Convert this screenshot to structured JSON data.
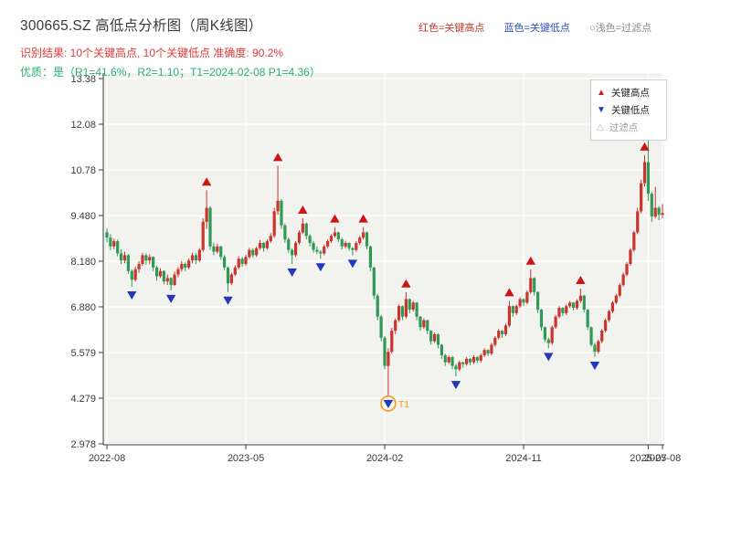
{
  "header": {
    "title": "300665.SZ 高低点分析图（周K线图）",
    "legend_inline": [
      {
        "label": "红色=关键高点",
        "color": "#c0392b"
      },
      {
        "label": "蓝色=关键低点",
        "color": "#2e4fbb"
      },
      {
        "label": "○浅色=过滤点",
        "color": "#8a8a8a"
      }
    ],
    "result_line": "识别结果: 10个关键高点, 10个关键低点  准确度: 90.2%",
    "quality_line": "优质：是（R1=41.6%，R2=1.10；T1=2024-02-08 P1=4.36）"
  },
  "chart_data": {
    "type": "candlestick",
    "title": "300665.SZ 高低点分析图（周K线图）",
    "xlabel": "",
    "ylabel": "",
    "ylim": [
      2.978,
      13.38
    ],
    "grid": true,
    "legend_position": "upper right",
    "y_ticks": [
      "13.38",
      "12.08",
      "10.78",
      "9.480",
      "8.180",
      "6.880",
      "5.579",
      "4.279",
      "2.978"
    ],
    "y_tick_values": [
      13.38,
      12.08,
      10.78,
      9.48,
      8.18,
      6.88,
      5.579,
      4.279,
      2.978
    ],
    "x_ticks": [
      {
        "label": "2022-08",
        "week": 0
      },
      {
        "label": "2023-05",
        "week": 39
      },
      {
        "label": "2024-02",
        "week": 78
      },
      {
        "label": "2024-11",
        "week": 117
      },
      {
        "label": "2025-07",
        "week": 152
      },
      {
        "label": "2025-08",
        "week": 156
      }
    ],
    "colors": {
      "up": "#c9352c",
      "down": "#2e9a56",
      "high_marker": "#cc1515",
      "low_marker": "#2438b8",
      "filtered": "#d8d8d8",
      "annotation": "#f39c12"
    },
    "legend": [
      {
        "marker": "up-triangle",
        "label": "关键高点"
      },
      {
        "marker": "down-triangle",
        "label": "关键低点"
      },
      {
        "marker": "open-triangle",
        "label": "过滤点"
      }
    ],
    "candles": [
      [
        9.0,
        9.12,
        8.72,
        8.85
      ],
      [
        8.85,
        8.95,
        8.5,
        8.6
      ],
      [
        8.6,
        8.82,
        8.52,
        8.75
      ],
      [
        8.75,
        8.8,
        8.32,
        8.4
      ],
      [
        8.4,
        8.52,
        8.1,
        8.2
      ],
      [
        8.2,
        8.45,
        8.12,
        8.35
      ],
      [
        8.35,
        8.38,
        7.82,
        7.9
      ],
      [
        7.9,
        7.95,
        7.45,
        7.65
      ],
      [
        7.65,
        8.02,
        7.6,
        7.95
      ],
      [
        7.95,
        8.18,
        7.85,
        8.1
      ],
      [
        8.1,
        8.42,
        8.05,
        8.35
      ],
      [
        8.35,
        8.4,
        8.08,
        8.2
      ],
      [
        8.2,
        8.38,
        8.1,
        8.3
      ],
      [
        8.3,
        8.32,
        7.9,
        8.0
      ],
      [
        8.0,
        8.05,
        7.62,
        7.75
      ],
      [
        7.75,
        7.98,
        7.7,
        7.9
      ],
      [
        7.9,
        7.92,
        7.52,
        7.6
      ],
      [
        7.6,
        7.8,
        7.5,
        7.7
      ],
      [
        7.7,
        7.72,
        7.35,
        7.5
      ],
      [
        7.5,
        7.88,
        7.48,
        7.8
      ],
      [
        7.8,
        8.02,
        7.72,
        7.95
      ],
      [
        7.95,
        8.18,
        7.88,
        8.1
      ],
      [
        8.1,
        8.15,
        7.9,
        8.0
      ],
      [
        8.0,
        8.26,
        7.95,
        8.2
      ],
      [
        8.2,
        8.42,
        8.12,
        8.35
      ],
      [
        8.35,
        8.4,
        8.1,
        8.2
      ],
      [
        8.2,
        8.55,
        8.15,
        8.5
      ],
      [
        8.5,
        9.4,
        8.45,
        9.3
      ],
      [
        9.3,
        10.2,
        9.1,
        9.7
      ],
      [
        9.7,
        9.75,
        8.5,
        8.6
      ],
      [
        8.6,
        8.7,
        8.35,
        8.45
      ],
      [
        8.45,
        8.68,
        8.4,
        8.6
      ],
      [
        8.6,
        8.62,
        8.22,
        8.3
      ],
      [
        8.3,
        8.35,
        7.92,
        8.0
      ],
      [
        8.0,
        8.02,
        7.3,
        7.55
      ],
      [
        7.55,
        7.85,
        7.5,
        7.8
      ],
      [
        7.8,
        8.06,
        7.75,
        8.0
      ],
      [
        8.0,
        8.32,
        7.95,
        8.25
      ],
      [
        8.25,
        8.3,
        8.02,
        8.1
      ],
      [
        8.1,
        8.36,
        8.05,
        8.3
      ],
      [
        8.3,
        8.56,
        8.25,
        8.5
      ],
      [
        8.5,
        8.55,
        8.28,
        8.35
      ],
      [
        8.35,
        8.6,
        8.3,
        8.55
      ],
      [
        8.55,
        8.78,
        8.5,
        8.7
      ],
      [
        8.7,
        8.72,
        8.45,
        8.55
      ],
      [
        8.55,
        8.8,
        8.5,
        8.75
      ],
      [
        8.75,
        8.98,
        8.7,
        8.9
      ],
      [
        8.9,
        9.7,
        8.85,
        9.6
      ],
      [
        9.6,
        10.9,
        9.5,
        9.9
      ],
      [
        9.9,
        9.95,
        9.1,
        9.2
      ],
      [
        9.2,
        9.25,
        8.7,
        8.8
      ],
      [
        8.8,
        8.85,
        8.42,
        8.5
      ],
      [
        8.5,
        8.55,
        8.1,
        8.35
      ],
      [
        8.35,
        8.75,
        8.3,
        8.7
      ],
      [
        8.7,
        9.06,
        8.65,
        9.0
      ],
      [
        9.0,
        9.4,
        8.95,
        9.25
      ],
      [
        9.25,
        9.28,
        8.8,
        8.9
      ],
      [
        8.9,
        8.95,
        8.6,
        8.7
      ],
      [
        8.7,
        8.75,
        8.42,
        8.5
      ],
      [
        8.5,
        8.6,
        8.38,
        8.45
      ],
      [
        8.45,
        8.5,
        8.25,
        8.4
      ],
      [
        8.4,
        8.65,
        8.35,
        8.6
      ],
      [
        8.6,
        8.8,
        8.55,
        8.75
      ],
      [
        8.75,
        8.95,
        8.7,
        8.9
      ],
      [
        8.9,
        9.15,
        8.85,
        9.0
      ],
      [
        9.0,
        9.02,
        8.72,
        8.8
      ],
      [
        8.8,
        8.85,
        8.52,
        8.6
      ],
      [
        8.6,
        8.76,
        8.55,
        8.7
      ],
      [
        8.7,
        8.72,
        8.48,
        8.55
      ],
      [
        8.55,
        8.58,
        8.35,
        8.5
      ],
      [
        8.5,
        8.75,
        8.45,
        8.7
      ],
      [
        8.7,
        8.9,
        8.65,
        8.85
      ],
      [
        8.85,
        9.15,
        8.8,
        9.0
      ],
      [
        9.0,
        9.02,
        8.52,
        8.6
      ],
      [
        8.6,
        8.62,
        7.9,
        8.0
      ],
      [
        8.0,
        8.02,
        7.1,
        7.2
      ],
      [
        7.2,
        7.25,
        6.5,
        6.6
      ],
      [
        6.6,
        6.65,
        5.9,
        6.0
      ],
      [
        6.0,
        6.05,
        5.1,
        5.2
      ],
      [
        5.2,
        5.7,
        4.36,
        5.6
      ],
      [
        5.6,
        6.28,
        5.55,
        6.2
      ],
      [
        6.2,
        6.55,
        6.1,
        6.5
      ],
      [
        6.5,
        6.95,
        6.45,
        6.9
      ],
      [
        6.9,
        6.92,
        6.5,
        6.6
      ],
      [
        6.6,
        7.3,
        6.55,
        7.1
      ],
      [
        7.1,
        7.12,
        6.7,
        6.8
      ],
      [
        6.8,
        7.05,
        6.75,
        7.0
      ],
      [
        7.0,
        7.02,
        6.5,
        6.6
      ],
      [
        6.6,
        6.62,
        6.2,
        6.3
      ],
      [
        6.3,
        6.55,
        6.25,
        6.5
      ],
      [
        6.5,
        6.52,
        6.1,
        6.2
      ],
      [
        6.2,
        6.22,
        5.8,
        5.9
      ],
      [
        5.9,
        6.15,
        5.85,
        6.1
      ],
      [
        6.1,
        6.12,
        5.7,
        5.8
      ],
      [
        5.8,
        5.82,
        5.4,
        5.5
      ],
      [
        5.5,
        5.55,
        5.2,
        5.3
      ],
      [
        5.3,
        5.5,
        5.25,
        5.45
      ],
      [
        5.45,
        5.48,
        5.1,
        5.2
      ],
      [
        5.2,
        5.25,
        4.9,
        5.1
      ],
      [
        5.1,
        5.35,
        5.05,
        5.3
      ],
      [
        5.3,
        5.32,
        5.15,
        5.25
      ],
      [
        5.25,
        5.45,
        5.2,
        5.4
      ],
      [
        5.4,
        5.42,
        5.22,
        5.3
      ],
      [
        5.3,
        5.5,
        5.25,
        5.45
      ],
      [
        5.45,
        5.47,
        5.28,
        5.35
      ],
      [
        5.35,
        5.55,
        5.3,
        5.5
      ],
      [
        5.5,
        5.7,
        5.45,
        5.65
      ],
      [
        5.65,
        5.67,
        5.48,
        5.55
      ],
      [
        5.55,
        5.85,
        5.5,
        5.8
      ],
      [
        5.8,
        6.05,
        5.75,
        6.0
      ],
      [
        6.0,
        6.25,
        5.95,
        6.2
      ],
      [
        6.2,
        6.22,
        6.0,
        6.1
      ],
      [
        6.1,
        6.4,
        6.05,
        6.35
      ],
      [
        6.35,
        7.05,
        6.3,
        6.9
      ],
      [
        6.9,
        6.92,
        6.6,
        6.7
      ],
      [
        6.7,
        6.95,
        6.65,
        6.9
      ],
      [
        6.9,
        7.15,
        6.85,
        7.1
      ],
      [
        7.1,
        7.12,
        6.9,
        7.0
      ],
      [
        7.0,
        7.35,
        6.95,
        7.3
      ],
      [
        7.3,
        7.95,
        7.25,
        7.7
      ],
      [
        7.7,
        7.72,
        7.2,
        7.3
      ],
      [
        7.3,
        7.32,
        6.7,
        6.8
      ],
      [
        6.8,
        6.82,
        6.2,
        6.3
      ],
      [
        6.3,
        6.32,
        5.88,
        5.95
      ],
      [
        5.95,
        6.0,
        5.7,
        5.85
      ],
      [
        5.85,
        6.35,
        5.8,
        6.3
      ],
      [
        6.3,
        6.65,
        6.25,
        6.6
      ],
      [
        6.6,
        6.9,
        6.55,
        6.85
      ],
      [
        6.85,
        6.87,
        6.62,
        6.7
      ],
      [
        6.7,
        6.95,
        6.65,
        6.9
      ],
      [
        6.9,
        7.05,
        6.85,
        7.0
      ],
      [
        7.0,
        7.02,
        6.78,
        6.85
      ],
      [
        6.85,
        7.1,
        6.8,
        7.05
      ],
      [
        7.05,
        7.4,
        7.0,
        7.2
      ],
      [
        7.2,
        7.22,
        6.72,
        6.8
      ],
      [
        6.8,
        6.82,
        6.22,
        6.3
      ],
      [
        6.3,
        6.32,
        5.75,
        5.8
      ],
      [
        5.8,
        5.85,
        5.45,
        5.6
      ],
      [
        5.6,
        5.95,
        5.55,
        5.9
      ],
      [
        5.9,
        6.25,
        5.85,
        6.2
      ],
      [
        6.2,
        6.55,
        6.15,
        6.5
      ],
      [
        6.5,
        6.8,
        6.45,
        6.75
      ],
      [
        6.75,
        7.05,
        6.7,
        7.0
      ],
      [
        7.0,
        7.25,
        6.95,
        7.2
      ],
      [
        7.2,
        7.55,
        7.15,
        7.5
      ],
      [
        7.5,
        7.85,
        7.45,
        7.8
      ],
      [
        7.8,
        8.15,
        7.75,
        8.1
      ],
      [
        8.1,
        8.55,
        8.05,
        8.5
      ],
      [
        8.5,
        9.05,
        8.45,
        9.0
      ],
      [
        9.0,
        9.7,
        8.95,
        9.6
      ],
      [
        9.6,
        10.5,
        9.55,
        10.4
      ],
      [
        10.4,
        11.2,
        10.3,
        11.0
      ],
      [
        11.0,
        11.95,
        9.9,
        10.1
      ],
      [
        10.1,
        10.15,
        9.3,
        9.45
      ],
      [
        9.45,
        10.3,
        9.4,
        9.7
      ],
      [
        9.7,
        9.75,
        9.35,
        9.5
      ],
      [
        9.5,
        9.8,
        9.4,
        9.55
      ]
    ],
    "key_highs": [
      28,
      48,
      55,
      64,
      72,
      84,
      113,
      119,
      133,
      151
    ],
    "key_lows": [
      7,
      18,
      34,
      52,
      60,
      69,
      79,
      98,
      124,
      137
    ],
    "annotation": {
      "week": 79,
      "price": 4.36,
      "label": "T1"
    }
  }
}
